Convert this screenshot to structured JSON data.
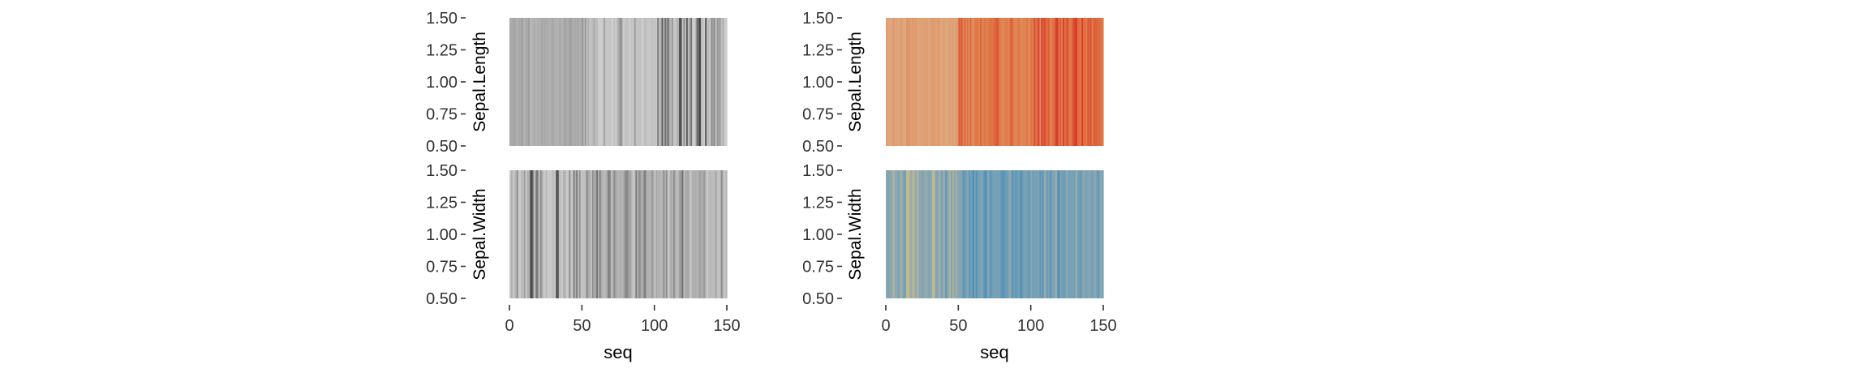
{
  "chart_data": [
    {
      "type": "heatmap",
      "palette": "greys",
      "xlabel": "seq",
      "xlim": [
        0,
        150
      ],
      "ylim": [
        0.5,
        1.5
      ],
      "x_ticks": [
        "0",
        "50",
        "100",
        "150"
      ],
      "y_ticks": [
        "0.50",
        "0.75",
        "1.00",
        "1.25",
        "1.50"
      ],
      "facets": [
        {
          "name": "Sepal.Length",
          "colors": [
            "#5a5a5a",
            "#a8a8a8",
            "#cfcfcf",
            "#3d3d3d"
          ],
          "values": [
            0.38,
            0.35,
            0.33,
            0.32,
            0.37,
            0.42,
            0.32,
            0.37,
            0.3,
            0.35,
            0.42,
            0.34,
            0.34,
            0.29,
            0.46,
            0.44,
            0.42,
            0.38,
            0.44,
            0.38,
            0.42,
            0.38,
            0.32,
            0.38,
            0.34,
            0.37,
            0.37,
            0.39,
            0.39,
            0.33,
            0.34,
            0.42,
            0.39,
            0.43,
            0.35,
            0.37,
            0.43,
            0.35,
            0.3,
            0.38,
            0.37,
            0.31,
            0.3,
            0.37,
            0.38,
            0.34,
            0.38,
            0.32,
            0.41,
            0.37,
            0.8,
            0.72,
            0.79,
            0.55,
            0.74,
            0.59,
            0.7,
            0.49,
            0.75,
            0.52,
            0.5,
            0.64,
            0.65,
            0.67,
            0.57,
            0.77,
            0.57,
            0.61,
            0.69,
            0.57,
            0.63,
            0.67,
            0.7,
            0.67,
            0.72,
            0.75,
            0.81,
            0.79,
            0.64,
            0.59,
            0.55,
            0.55,
            0.61,
            0.64,
            0.54,
            0.64,
            0.79,
            0.7,
            0.57,
            0.55,
            0.55,
            0.67,
            0.61,
            0.5,
            0.57,
            0.59,
            0.59,
            0.69,
            0.52,
            0.59,
            0.7,
            0.61,
            0.86,
            0.7,
            0.74,
            0.93,
            0.49,
            0.88,
            0.79,
            0.89,
            0.74,
            0.72,
            0.79,
            0.59,
            0.61,
            0.72,
            0.74,
            0.95,
            0.95,
            0.64,
            0.82,
            0.57,
            0.95,
            0.7,
            0.77,
            0.88,
            0.67,
            0.66,
            0.72,
            0.88,
            0.91,
            0.99,
            0.72,
            0.7,
            0.66,
            0.95,
            0.7,
            0.72,
            0.64,
            0.82,
            0.77,
            0.82,
            0.61,
            0.79,
            0.77,
            0.77,
            0.7,
            0.74,
            0.68,
            0.64
          ]
        },
        {
          "name": "Sepal.Width",
          "colors": [
            "#5a5a5a",
            "#a8a8a8",
            "#cfcfcf",
            "#3d3d3d"
          ],
          "values": [
            0.68,
            0.4,
            0.58,
            0.54,
            0.73,
            0.82,
            0.63,
            0.63,
            0.45,
            0.5,
            0.78,
            0.63,
            0.4,
            0.4,
            0.91,
            0.99,
            0.82,
            0.68,
            0.86,
            0.86,
            0.63,
            0.82,
            0.76,
            0.58,
            0.63,
            0.45,
            0.63,
            0.68,
            0.63,
            0.54,
            0.5,
            0.63,
            0.95,
            0.95,
            0.5,
            0.54,
            0.68,
            0.73,
            0.4,
            0.63,
            0.68,
            0.22,
            0.54,
            0.68,
            0.86,
            0.4,
            0.86,
            0.54,
            0.81,
            0.58,
            0.54,
            0.54,
            0.5,
            0.18,
            0.36,
            0.36,
            0.59,
            0.22,
            0.4,
            0.31,
            0.09,
            0.45,
            0.14,
            0.4,
            0.4,
            0.5,
            0.45,
            0.31,
            0.14,
            0.22,
            0.54,
            0.36,
            0.22,
            0.36,
            0.4,
            0.45,
            0.36,
            0.45,
            0.4,
            0.27,
            0.2,
            0.2,
            0.31,
            0.31,
            0.45,
            0.63,
            0.5,
            0.13,
            0.45,
            0.22,
            0.27,
            0.45,
            0.27,
            0.14,
            0.31,
            0.45,
            0.4,
            0.4,
            0.27,
            0.36,
            0.59,
            0.31,
            0.45,
            0.4,
            0.45,
            0.45,
            0.22,
            0.4,
            0.22,
            0.68,
            0.54,
            0.31,
            0.45,
            0.22,
            0.36,
            0.54,
            0.45,
            0.77,
            0.27,
            0.09,
            0.54,
            0.36,
            0.36,
            0.31,
            0.59,
            0.54,
            0.36,
            0.45,
            0.36,
            0.45,
            0.36,
            0.77,
            0.36,
            0.36,
            0.27,
            0.45,
            0.63,
            0.5,
            0.45,
            0.5,
            0.5,
            0.5,
            0.31,
            0.54,
            0.59,
            0.45,
            0.22,
            0.45,
            0.63,
            0.45
          ]
        }
      ]
    },
    {
      "type": "heatmap",
      "palette": "spectral",
      "xlabel": "seq",
      "xlim": [
        0,
        150
      ],
      "ylim": [
        0.5,
        1.5
      ],
      "x_ticks": [
        "0",
        "50",
        "100",
        "150"
      ],
      "y_ticks": [
        "0.50",
        "0.75",
        "1.00",
        "1.25",
        "1.50"
      ],
      "facets": [
        {
          "name": "Sepal.Length",
          "colors": [
            "#cfc49b",
            "#dfa57c",
            "#e07744",
            "#d7322b"
          ],
          "values": [
            0.38,
            0.35,
            0.33,
            0.32,
            0.37,
            0.42,
            0.32,
            0.37,
            0.3,
            0.35,
            0.42,
            0.34,
            0.34,
            0.29,
            0.46,
            0.44,
            0.42,
            0.38,
            0.44,
            0.38,
            0.42,
            0.38,
            0.32,
            0.38,
            0.34,
            0.37,
            0.37,
            0.39,
            0.39,
            0.33,
            0.34,
            0.42,
            0.39,
            0.43,
            0.35,
            0.37,
            0.43,
            0.35,
            0.3,
            0.38,
            0.37,
            0.31,
            0.3,
            0.37,
            0.38,
            0.34,
            0.38,
            0.32,
            0.41,
            0.37,
            0.8,
            0.72,
            0.79,
            0.55,
            0.74,
            0.59,
            0.7,
            0.49,
            0.75,
            0.52,
            0.5,
            0.64,
            0.65,
            0.67,
            0.57,
            0.77,
            0.57,
            0.61,
            0.69,
            0.57,
            0.63,
            0.67,
            0.7,
            0.67,
            0.72,
            0.75,
            0.81,
            0.79,
            0.64,
            0.59,
            0.55,
            0.55,
            0.61,
            0.64,
            0.54,
            0.64,
            0.79,
            0.7,
            0.57,
            0.55,
            0.55,
            0.67,
            0.61,
            0.5,
            0.57,
            0.59,
            0.59,
            0.69,
            0.52,
            0.59,
            0.7,
            0.61,
            0.86,
            0.7,
            0.74,
            0.93,
            0.49,
            0.88,
            0.79,
            0.89,
            0.74,
            0.72,
            0.79,
            0.59,
            0.61,
            0.72,
            0.74,
            0.95,
            0.95,
            0.64,
            0.82,
            0.57,
            0.95,
            0.7,
            0.77,
            0.88,
            0.67,
            0.66,
            0.72,
            0.88,
            0.91,
            0.99,
            0.72,
            0.7,
            0.66,
            0.95,
            0.7,
            0.72,
            0.64,
            0.82,
            0.77,
            0.82,
            0.61,
            0.79,
            0.77,
            0.77,
            0.7,
            0.74,
            0.68,
            0.64
          ]
        },
        {
          "name": "Sepal.Width",
          "colors": [
            "#3d86b8",
            "#6d9eb8",
            "#94a9ae",
            "#c7bd89"
          ],
          "values": [
            0.68,
            0.4,
            0.58,
            0.54,
            0.73,
            0.82,
            0.63,
            0.63,
            0.45,
            0.5,
            0.78,
            0.63,
            0.4,
            0.4,
            0.91,
            0.99,
            0.82,
            0.68,
            0.86,
            0.86,
            0.63,
            0.82,
            0.76,
            0.58,
            0.63,
            0.45,
            0.63,
            0.68,
            0.63,
            0.54,
            0.5,
            0.63,
            0.95,
            0.95,
            0.5,
            0.54,
            0.68,
            0.73,
            0.4,
            0.63,
            0.68,
            0.22,
            0.54,
            0.68,
            0.86,
            0.4,
            0.86,
            0.54,
            0.81,
            0.58,
            0.54,
            0.54,
            0.5,
            0.18,
            0.36,
            0.36,
            0.59,
            0.22,
            0.4,
            0.31,
            0.09,
            0.45,
            0.14,
            0.4,
            0.4,
            0.5,
            0.45,
            0.31,
            0.14,
            0.22,
            0.54,
            0.36,
            0.22,
            0.36,
            0.4,
            0.45,
            0.36,
            0.45,
            0.4,
            0.27,
            0.2,
            0.2,
            0.31,
            0.31,
            0.45,
            0.63,
            0.5,
            0.13,
            0.45,
            0.22,
            0.27,
            0.45,
            0.27,
            0.14,
            0.31,
            0.45,
            0.4,
            0.4,
            0.27,
            0.36,
            0.59,
            0.31,
            0.45,
            0.4,
            0.45,
            0.45,
            0.22,
            0.4,
            0.22,
            0.68,
            0.54,
            0.31,
            0.45,
            0.22,
            0.36,
            0.54,
            0.45,
            0.77,
            0.27,
            0.09,
            0.54,
            0.36,
            0.36,
            0.31,
            0.59,
            0.54,
            0.36,
            0.45,
            0.36,
            0.45,
            0.36,
            0.77,
            0.36,
            0.36,
            0.27,
            0.45,
            0.63,
            0.5,
            0.45,
            0.5,
            0.5,
            0.5,
            0.31,
            0.54,
            0.59,
            0.45,
            0.22,
            0.45,
            0.63,
            0.45
          ]
        }
      ]
    }
  ]
}
